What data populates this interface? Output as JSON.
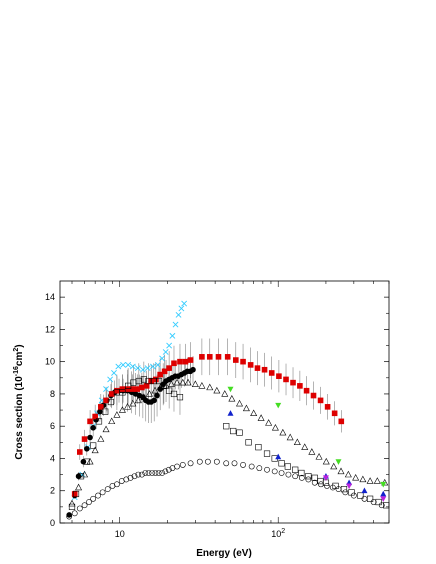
{
  "chart_data": {
    "type": "scatter",
    "title": "",
    "xlabel": "Energy (eV)",
    "ylabel_parts": [
      "Cross section (10",
      "-16",
      "cm",
      "2",
      ")"
    ],
    "x_scale": "log",
    "xlim": [
      4.2,
      500
    ],
    "ylim": [
      0,
      15
    ],
    "x_ticks": [
      {
        "value": 10,
        "base": "10",
        "exp": ""
      },
      {
        "value": 100,
        "base": "10",
        "exp": "2"
      }
    ],
    "y_ticks": [
      0,
      2,
      4,
      6,
      8,
      10,
      12,
      14
    ],
    "grid": false,
    "legend": "none",
    "series": [
      {
        "marker": "x",
        "color": "#33ccff",
        "points": [
          [
            5.2,
            1.6
          ],
          [
            5.8,
            3.0
          ],
          [
            6.3,
            4.7
          ],
          [
            6.8,
            6.0
          ],
          [
            7.2,
            6.8
          ],
          [
            7.7,
            7.6
          ],
          [
            8.2,
            8.3
          ],
          [
            8.7,
            8.9
          ],
          [
            9.2,
            9.3
          ],
          [
            9.8,
            9.7
          ],
          [
            10.5,
            9.8
          ],
          [
            11.3,
            9.8
          ],
          [
            12.1,
            9.7
          ],
          [
            13.0,
            9.6
          ],
          [
            14.0,
            9.5
          ],
          [
            15.0,
            9.6
          ],
          [
            16.2,
            9.7
          ],
          [
            17.4,
            9.8
          ],
          [
            18.5,
            10.2
          ],
          [
            19.5,
            10.6
          ],
          [
            20.5,
            11.0
          ],
          [
            21.5,
            11.6
          ],
          [
            22.5,
            12.3
          ],
          [
            23.5,
            12.9
          ],
          [
            24.5,
            13.3
          ],
          [
            25.5,
            13.6
          ]
        ]
      },
      {
        "marker": "filled-circle",
        "color": "#000000",
        "points": [
          [
            4.8,
            0.5
          ],
          [
            5.2,
            1.7
          ],
          [
            5.5,
            2.9
          ],
          [
            5.9,
            3.8
          ],
          [
            6.2,
            4.6
          ],
          [
            6.5,
            5.3
          ],
          [
            6.8,
            5.9
          ],
          [
            7.1,
            6.4
          ],
          [
            7.5,
            6.9
          ],
          [
            7.9,
            7.3
          ],
          [
            8.3,
            7.6
          ],
          [
            8.8,
            7.9
          ],
          [
            9.3,
            8.1
          ],
          [
            9.9,
            8.2
          ],
          [
            10.5,
            8.2
          ],
          [
            11.2,
            8.2
          ],
          [
            11.9,
            8.1
          ],
          [
            12.6,
            8.0
          ],
          [
            13.3,
            7.9
          ],
          [
            14.0,
            7.8
          ],
          [
            14.6,
            7.6
          ],
          [
            15.2,
            7.5
          ],
          [
            15.8,
            7.5
          ],
          [
            16.5,
            7.6
          ],
          [
            17.2,
            7.9
          ],
          [
            18.0,
            8.3
          ],
          [
            18.8,
            8.6
          ],
          [
            19.6,
            8.8
          ],
          [
            20.5,
            8.9
          ],
          [
            21.4,
            9.0
          ],
          [
            22.4,
            9.1
          ],
          [
            23.4,
            9.1
          ],
          [
            24.5,
            9.2
          ],
          [
            25.6,
            9.3
          ],
          [
            26.7,
            9.4
          ],
          [
            27.9,
            9.4
          ],
          [
            29.0,
            9.5
          ]
        ]
      },
      {
        "marker": "filled-square",
        "color": "#dd0000",
        "points": [
          [
            5.2,
            1.8
          ],
          [
            5.6,
            4.4
          ],
          [
            6.0,
            5.2
          ],
          [
            6.5,
            6.3
          ],
          [
            7.0,
            6.6
          ],
          [
            7.6,
            7.2
          ],
          [
            8.2,
            7.6
          ],
          [
            8.9,
            8.0
          ],
          [
            9.6,
            8.2
          ],
          [
            10.4,
            8.3
          ],
          [
            11.2,
            8.3
          ],
          [
            12.0,
            8.3
          ],
          [
            12.9,
            8.3
          ],
          [
            13.8,
            8.4
          ],
          [
            14.8,
            8.5
          ],
          [
            15.8,
            8.8
          ],
          [
            16.9,
            8.9
          ],
          [
            18.0,
            9.2
          ],
          [
            19.2,
            9.4
          ],
          [
            20.5,
            9.6
          ],
          [
            22.0,
            9.9
          ],
          [
            24.0,
            10.0
          ],
          [
            26.0,
            10.0
          ],
          [
            28.0,
            10.1
          ],
          [
            33.0,
            10.3
          ],
          [
            37.0,
            10.3
          ],
          [
            42.0,
            10.3
          ],
          [
            48.0,
            10.3
          ],
          [
            54.0,
            10.1
          ],
          [
            60.0,
            10.0
          ],
          [
            67.0,
            9.8
          ],
          [
            74.0,
            9.6
          ],
          [
            82.0,
            9.5
          ],
          [
            91.0,
            9.3
          ],
          [
            101.0,
            9.1
          ],
          [
            112.0,
            8.9
          ],
          [
            124.0,
            8.7
          ],
          [
            137.0,
            8.5
          ],
          [
            151.0,
            8.2
          ],
          [
            167.0,
            7.9
          ],
          [
            185.0,
            7.6
          ],
          [
            205.0,
            7.2
          ],
          [
            227.0,
            6.8
          ],
          [
            250.0,
            6.3
          ]
        ]
      },
      {
        "marker": "open-square",
        "color": "#000000",
        "points": [
          [
            5.0,
            1.0
          ],
          [
            5.3,
            1.8
          ],
          [
            5.7,
            2.9
          ],
          [
            6.2,
            3.8
          ],
          [
            6.8,
            4.8
          ],
          [
            7.4,
            6.3
          ],
          [
            8.1,
            6.9
          ],
          [
            8.8,
            7.5
          ],
          [
            9.6,
            8.1
          ],
          [
            10.4,
            8.1
          ],
          [
            11.3,
            8.5
          ],
          [
            12.2,
            8.7
          ],
          [
            13.2,
            8.8
          ],
          [
            14.2,
            8.9
          ],
          [
            15.2,
            8.8
          ],
          [
            16.4,
            8.8
          ],
          [
            17.7,
            8.8
          ],
          [
            19.0,
            8.5
          ],
          [
            20.5,
            8.2
          ],
          [
            22.0,
            8.0
          ],
          [
            24.0,
            7.8
          ],
          [
            47.0,
            6.0
          ],
          [
            52.0,
            5.7
          ],
          [
            57.0,
            5.6
          ],
          [
            65.0,
            5.0
          ],
          [
            75.0,
            4.7
          ],
          [
            85.0,
            4.3
          ],
          [
            95.0,
            4.0
          ],
          [
            105.0,
            3.7
          ],
          [
            115.0,
            3.5
          ],
          [
            128.0,
            3.3
          ],
          [
            140.0,
            3.1
          ],
          [
            155.0,
            2.9
          ],
          [
            170.0,
            2.8
          ],
          [
            185.0,
            2.6
          ],
          [
            200.0,
            2.5
          ],
          [
            230.0,
            2.3
          ],
          [
            260.0,
            2.1
          ],
          [
            290.0,
            1.9
          ],
          [
            330.0,
            1.7
          ],
          [
            380.0,
            1.5
          ],
          [
            430.0,
            1.3
          ],
          [
            480.0,
            1.1
          ]
        ]
      },
      {
        "marker": "open-triangle",
        "color": "#000000",
        "points": [
          [
            5.0,
            1.2
          ],
          [
            5.5,
            2.2
          ],
          [
            6.0,
            3.0
          ],
          [
            6.5,
            3.8
          ],
          [
            7.0,
            4.5
          ],
          [
            7.6,
            5.2
          ],
          [
            8.2,
            5.8
          ],
          [
            8.9,
            6.3
          ],
          [
            9.6,
            6.7
          ],
          [
            10.4,
            7.0
          ],
          [
            11.2,
            7.2
          ],
          [
            12.1,
            7.4
          ],
          [
            13.1,
            7.6
          ],
          [
            14.2,
            7.8
          ],
          [
            15.4,
            8.0
          ],
          [
            16.7,
            8.2
          ],
          [
            18.1,
            8.4
          ],
          [
            19.6,
            8.5
          ],
          [
            21.2,
            8.6
          ],
          [
            23.0,
            8.7
          ],
          [
            25.0,
            8.7
          ],
          [
            27.0,
            8.7
          ],
          [
            30.0,
            8.6
          ],
          [
            33.0,
            8.5
          ],
          [
            37.0,
            8.4
          ],
          [
            41.0,
            8.2
          ],
          [
            46.0,
            8.0
          ],
          [
            51.0,
            7.7
          ],
          [
            57.0,
            7.4
          ],
          [
            63.0,
            7.1
          ],
          [
            70.0,
            6.8
          ],
          [
            78.0,
            6.5
          ],
          [
            87.0,
            6.2
          ],
          [
            96.0,
            5.9
          ],
          [
            107.0,
            5.6
          ],
          [
            119.0,
            5.3
          ],
          [
            132.0,
            5.0
          ],
          [
            147.0,
            4.7
          ],
          [
            163.0,
            4.4
          ],
          [
            181.0,
            4.1
          ],
          [
            201.0,
            3.8
          ],
          [
            224.0,
            3.5
          ],
          [
            249.0,
            3.2
          ],
          [
            277.0,
            3.0
          ],
          [
            308.0,
            2.8
          ],
          [
            342.0,
            2.7
          ],
          [
            380.0,
            2.6
          ],
          [
            422.0,
            2.6
          ],
          [
            470.0,
            2.5
          ]
        ]
      },
      {
        "marker": "open-circle",
        "color": "#000000",
        "points": [
          [
            4.8,
            0.4
          ],
          [
            5.2,
            0.6
          ],
          [
            5.6,
            0.9
          ],
          [
            6.0,
            1.1
          ],
          [
            6.4,
            1.3
          ],
          [
            6.8,
            1.5
          ],
          [
            7.3,
            1.7
          ],
          [
            7.8,
            1.9
          ],
          [
            8.4,
            2.1
          ],
          [
            9.0,
            2.3
          ],
          [
            9.6,
            2.4
          ],
          [
            10.3,
            2.6
          ],
          [
            11.0,
            2.7
          ],
          [
            11.7,
            2.8
          ],
          [
            12.4,
            2.9
          ],
          [
            13.1,
            3.0
          ],
          [
            13.8,
            3.0
          ],
          [
            14.5,
            3.1
          ],
          [
            15.2,
            3.1
          ],
          [
            16.0,
            3.1
          ],
          [
            16.8,
            3.1
          ],
          [
            17.6,
            3.1
          ],
          [
            18.5,
            3.1
          ],
          [
            19.4,
            3.2
          ],
          [
            20.4,
            3.3
          ],
          [
            21.5,
            3.4
          ],
          [
            23.0,
            3.5
          ],
          [
            25.0,
            3.6
          ],
          [
            28.0,
            3.7
          ],
          [
            32.0,
            3.8
          ],
          [
            36.0,
            3.8
          ],
          [
            41.0,
            3.8
          ],
          [
            47.0,
            3.7
          ],
          [
            53.0,
            3.7
          ],
          [
            60.0,
            3.6
          ],
          [
            68.0,
            3.5
          ],
          [
            76.0,
            3.4
          ],
          [
            85.0,
            3.3
          ],
          [
            95.0,
            3.2
          ],
          [
            105.0,
            3.1
          ],
          [
            116.0,
            3.0
          ],
          [
            128.0,
            2.9
          ],
          [
            141.0,
            2.8
          ],
          [
            155.0,
            2.7
          ],
          [
            170.0,
            2.5
          ],
          [
            186.0,
            2.4
          ],
          [
            203.0,
            2.3
          ],
          [
            221.0,
            2.2
          ],
          [
            240.0,
            2.1
          ],
          [
            265.0,
            1.9
          ],
          [
            300.0,
            1.7
          ],
          [
            350.0,
            1.5
          ],
          [
            400.0,
            1.3
          ],
          [
            450.0,
            1.1
          ]
        ]
      },
      {
        "marker": "filled-triangle-down",
        "color": "#44dd22",
        "points": [
          [
            50,
            8.3
          ],
          [
            100,
            7.3
          ],
          [
            240,
            3.8
          ],
          [
            460,
            2.4
          ]
        ]
      },
      {
        "marker": "filled-triangle",
        "color": "#1122cc",
        "points": [
          [
            50,
            6.8
          ],
          [
            100,
            4.1
          ],
          [
            200,
            2.9
          ],
          [
            280,
            2.5
          ],
          [
            350,
            2.0
          ],
          [
            460,
            1.8
          ]
        ]
      },
      {
        "marker": "filled-triangle-down",
        "color": "#bb22dd",
        "points": [
          [
            200,
            2.8
          ],
          [
            280,
            2.3
          ],
          [
            460,
            1.5
          ]
        ]
      }
    ]
  }
}
